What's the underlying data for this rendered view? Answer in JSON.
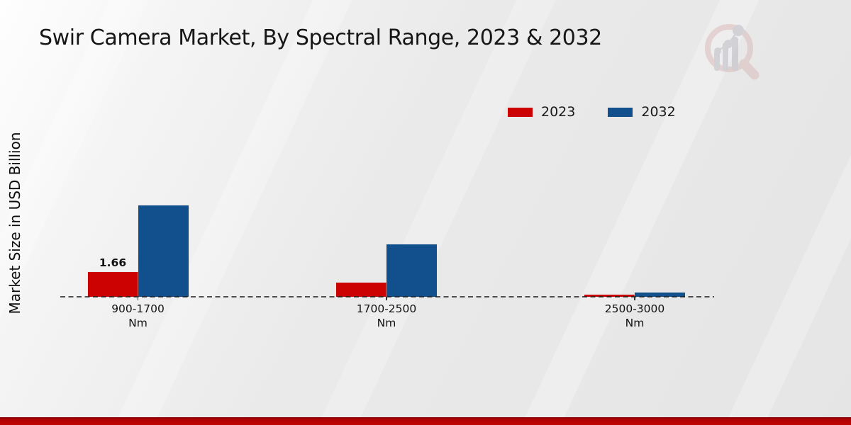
{
  "page": {
    "title": "Swir Camera Market, By Spectral Range, 2023 & 2032"
  },
  "colors": {
    "series_2023": "#cc0202",
    "series_2032": "#11508c",
    "bottom_strip": "#b00202",
    "text": "#111111",
    "baseline": "#1a1a1a"
  },
  "legend": {
    "position": "top-right",
    "items": [
      {
        "label": "2023",
        "color": "#cc0202"
      },
      {
        "label": "2032",
        "color": "#11508c"
      }
    ]
  },
  "chart_data": {
    "type": "bar",
    "title": "Swir Camera Market, By Spectral Range, 2023 & 2032",
    "ylabel": "Market Size in USD Billion",
    "xlabel": "",
    "categories": [
      [
        "900-1700",
        "Nm"
      ],
      [
        "1700-2500",
        "Nm"
      ],
      [
        "2500-3000",
        "Nm"
      ]
    ],
    "series": [
      {
        "name": "2023",
        "color": "#cc0202",
        "values": [
          1.66,
          0.95,
          0.12
        ],
        "data_labels": [
          "1.66",
          "",
          ""
        ]
      },
      {
        "name": "2032",
        "color": "#11508c",
        "values": [
          6.1,
          3.5,
          0.28
        ],
        "data_labels": [
          "",
          "",
          ""
        ]
      }
    ],
    "ylim": [
      0,
      7
    ],
    "grid": false,
    "baseline_style": "dashed",
    "legend_position": "top-right",
    "units": "USD Billion"
  }
}
